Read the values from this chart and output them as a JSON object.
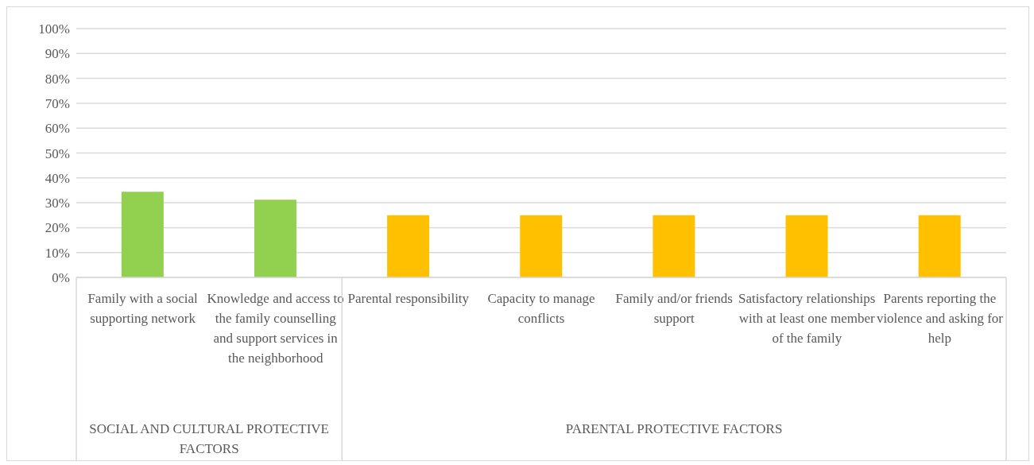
{
  "chart_data": {
    "type": "bar",
    "categories": [
      "Family with a social supporting network",
      "Knowledge and access to the family counselling and support services in the neighborhood",
      "Parental responsibility",
      "Capacity to manage conflicts",
      "Family and/or friends support",
      "Satisfactory relationships with at least one member of the family",
      "Parents reporting the violence and asking for help"
    ],
    "values": [
      34.4,
      31.2,
      25,
      25,
      25,
      25,
      25
    ],
    "colors": [
      "#92d050",
      "#92d050",
      "#ffc000",
      "#ffc000",
      "#ffc000",
      "#ffc000",
      "#ffc000"
    ],
    "ylim": [
      0,
      100
    ],
    "yticks": [
      {
        "value": 0,
        "label": "0%"
      },
      {
        "value": 10,
        "label": "10%"
      },
      {
        "value": 20,
        "label": "20%"
      },
      {
        "value": 30,
        "label": "30%"
      },
      {
        "value": 40,
        "label": "40%"
      },
      {
        "value": 50,
        "label": "50%"
      },
      {
        "value": 60,
        "label": "60%"
      },
      {
        "value": 70,
        "label": "70%"
      },
      {
        "value": 80,
        "label": "80%"
      },
      {
        "value": 90,
        "label": "90%"
      },
      {
        "value": 100,
        "label": "100%"
      }
    ],
    "grid": "y",
    "annotations": [
      "SOCIAL AND CULTURAL PROTECTIVE FACTORS",
      "PARENTAL PROTECTIVE FACTORS"
    ]
  }
}
